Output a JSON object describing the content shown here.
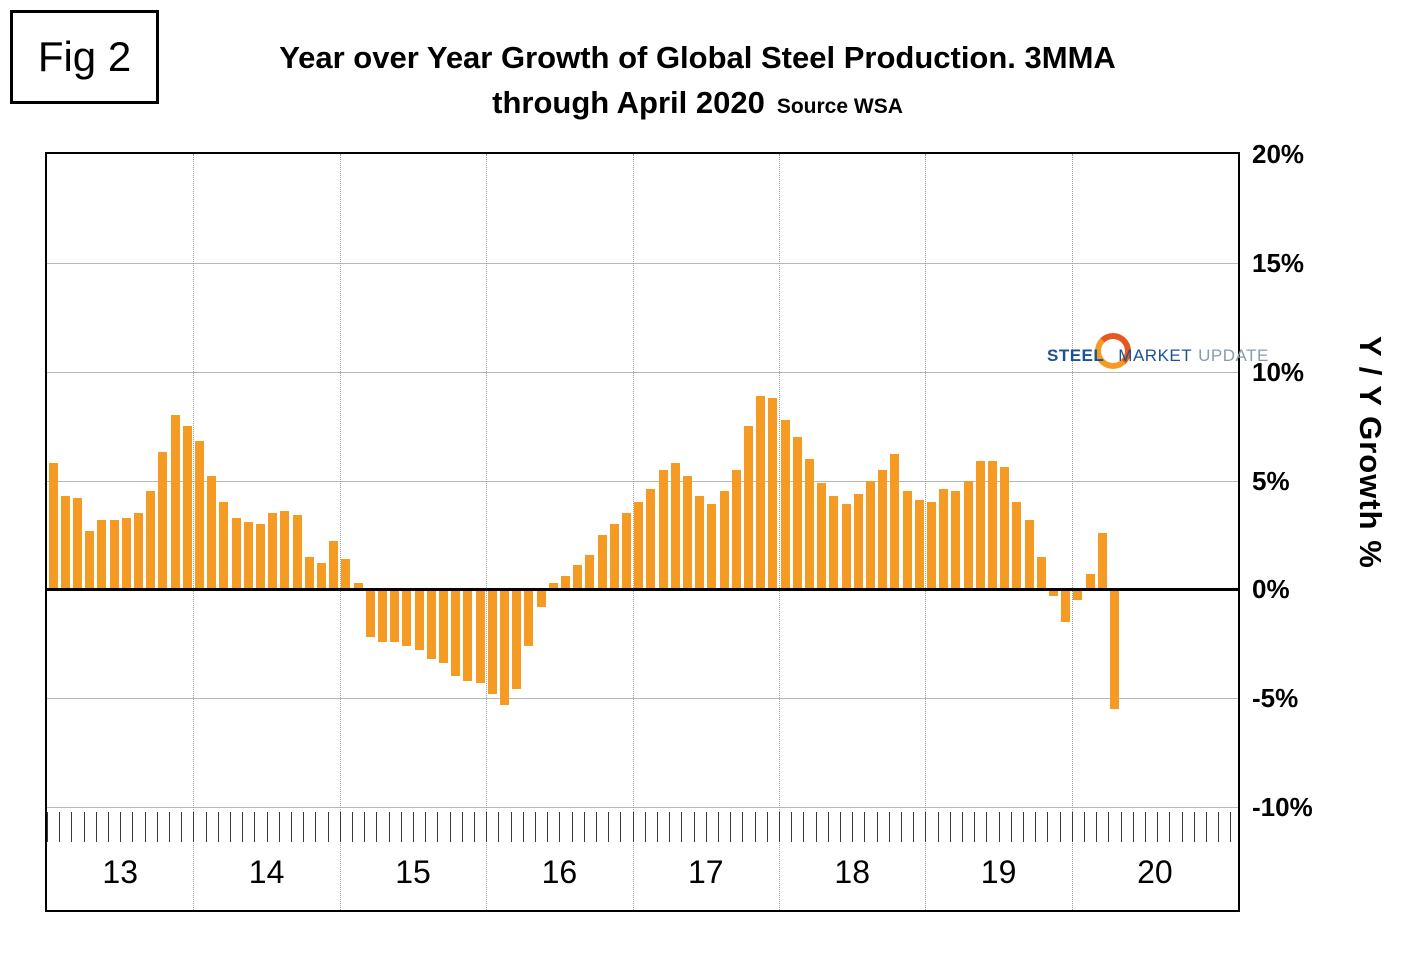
{
  "figure_label": "Fig 2",
  "title": {
    "line1": "Year over Year Growth of Global Steel Production. 3MMA",
    "line2": "through April 2020",
    "source": "Source WSA"
  },
  "logo": {
    "steel": "STEEL",
    "market": "MARKET",
    "update": "UPDATE"
  },
  "axis": {
    "right_label": "Y / Y Growth %",
    "yticks": [
      20,
      15,
      10,
      5,
      0,
      -5,
      -10
    ],
    "ytick_labels": [
      "20%",
      "15%",
      "10%",
      "5%",
      "0%",
      "-5%",
      "-10%"
    ],
    "year_labels": [
      "13",
      "14",
      "15",
      "16",
      "17",
      "18",
      "19",
      "20"
    ]
  },
  "chart_data": {
    "type": "bar",
    "title": "Year over Year Growth of Global Steel Production. 3MMA through April 2020",
    "source": "WSA",
    "ylabel": "Y / Y Growth %",
    "unit": "percent",
    "frequency": "monthly",
    "x_start": "2013-01",
    "x_end": "2020-04",
    "ylim": [
      -10,
      20
    ],
    "yticks": [
      20,
      15,
      10,
      5,
      0,
      -5,
      -10
    ],
    "grid": true,
    "bar_color": "#F59B23",
    "year_tick_labels": [
      "13",
      "14",
      "15",
      "16",
      "17",
      "18",
      "19",
      "20"
    ],
    "values_by_year": {
      "2013": [
        5.8,
        4.3,
        4.2,
        2.7,
        3.2,
        3.2,
        3.3,
        3.5,
        4.5,
        6.3,
        8.0,
        7.5
      ],
      "2014": [
        6.8,
        5.2,
        4.0,
        3.3,
        3.1,
        3.0,
        3.5,
        3.6,
        3.4,
        1.5,
        1.2,
        2.2
      ],
      "2015": [
        1.4,
        0.3,
        -2.2,
        -2.4,
        -2.4,
        -2.6,
        -2.8,
        -3.2,
        -3.4,
        -4.0,
        -4.2,
        -4.3
      ],
      "2016": [
        -4.8,
        -5.3,
        -4.6,
        -2.6,
        -0.8,
        0.3,
        0.6,
        1.1,
        1.6,
        2.5,
        3.0,
        3.5
      ],
      "2017": [
        4.0,
        4.6,
        5.5,
        5.8,
        5.2,
        4.3,
        3.9,
        4.5,
        5.5,
        7.5,
        8.9,
        8.8
      ],
      "2018": [
        7.8,
        7.0,
        6.0,
        4.9,
        4.3,
        3.9,
        4.4,
        5.0,
        5.5,
        6.2,
        4.5,
        4.1
      ],
      "2019": [
        4.0,
        4.6,
        4.5,
        5.0,
        5.9,
        5.9,
        5.6,
        4.0,
        3.2,
        1.5,
        -0.3,
        -1.5
      ],
      "2020": [
        -0.5,
        0.7,
        2.6,
        -5.5
      ]
    }
  }
}
